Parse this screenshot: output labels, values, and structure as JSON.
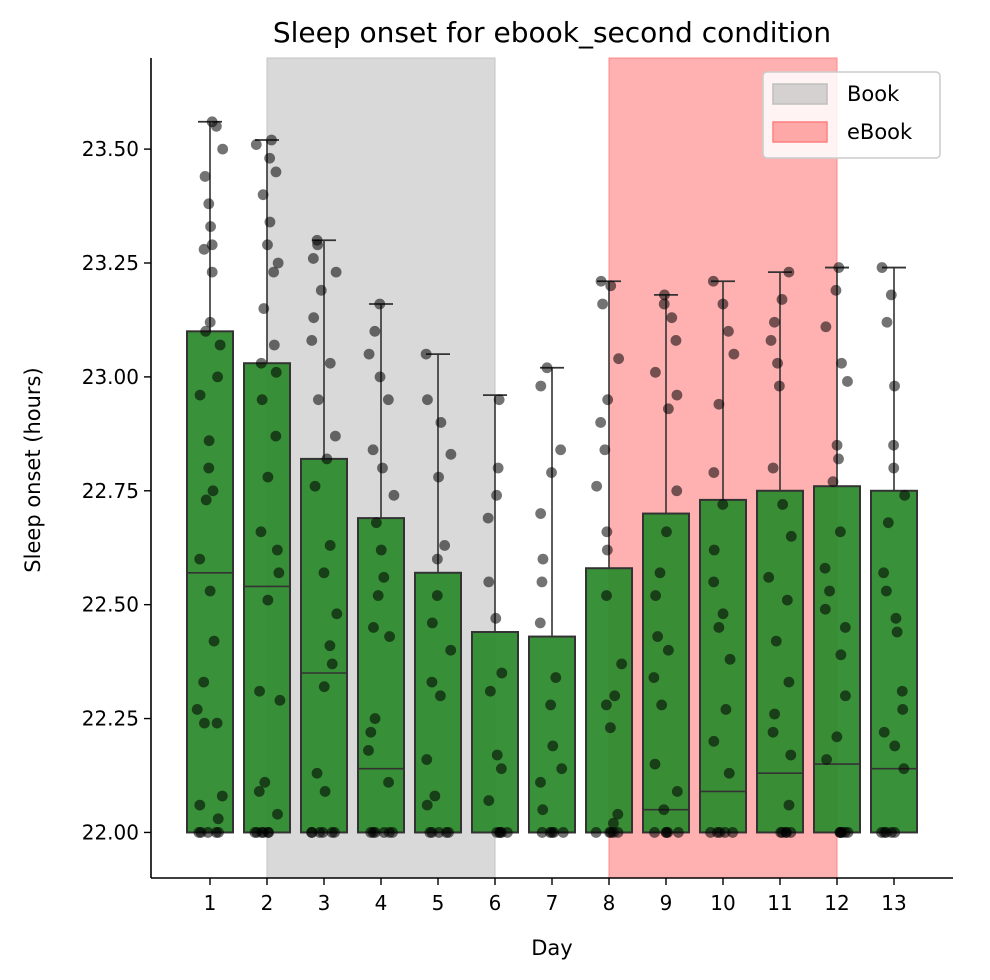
{
  "chart_data": {
    "type": "bar",
    "title": "Sleep onset for ebook_second condition",
    "xlabel": "Day",
    "ylabel": "Sleep onset (hours)",
    "categories": [
      "1",
      "2",
      "3",
      "4",
      "5",
      "6",
      "7",
      "8",
      "9",
      "10",
      "11",
      "12",
      "13"
    ],
    "ylim": [
      21.9,
      23.7
    ],
    "yticks": [
      22.0,
      22.25,
      22.5,
      22.75,
      23.0,
      23.25,
      23.5
    ],
    "ytick_labels": [
      "22.00",
      "22.25",
      "22.50",
      "22.75",
      "23.00",
      "23.25",
      "23.50"
    ],
    "bar_color": "#2e8b2e",
    "series": [
      {
        "values": [
          23.1,
          23.03,
          22.82,
          22.69,
          22.57,
          22.44,
          22.43,
          22.58,
          22.7,
          22.73,
          22.75,
          22.76,
          22.75
        ],
        "medians": [
          22.57,
          22.54,
          22.35,
          22.14,
          22.0,
          22.0,
          22.0,
          22.0,
          22.05,
          22.09,
          22.13,
          22.15,
          22.14
        ],
        "whisker_max": [
          23.56,
          23.52,
          23.3,
          23.16,
          23.05,
          22.96,
          23.02,
          23.21,
          23.18,
          23.21,
          23.23,
          23.24,
          23.24
        ]
      }
    ],
    "spans": [
      {
        "label": "Book",
        "x_start": "2",
        "x_end": "6",
        "color": "#bfbfbf"
      },
      {
        "label": "eBook",
        "x_start": "8",
        "x_end": "12",
        "color": "#ff8080"
      }
    ],
    "legend": {
      "placement": "top-right",
      "entries": [
        {
          "label": "Book",
          "color": "#bfbfbf"
        },
        {
          "label": "eBook",
          "color": "#ff8080"
        }
      ]
    },
    "points": [
      [
        22.0,
        22.0,
        22.0,
        22.0,
        22.0,
        22.03,
        22.06,
        22.08,
        22.24,
        22.24,
        22.27,
        22.33,
        22.42,
        22.53,
        22.6,
        22.73,
        22.75,
        22.8,
        22.86,
        22.96,
        23.0,
        23.07,
        23.1,
        23.12,
        23.23,
        23.28,
        23.29,
        23.33,
        23.38,
        23.44,
        23.5,
        23.55,
        23.56
      ],
      [
        22.0,
        22.0,
        22.0,
        22.0,
        22.0,
        22.0,
        22.04,
        22.09,
        22.11,
        22.29,
        22.31,
        22.51,
        22.57,
        22.62,
        22.66,
        22.78,
        22.87,
        22.95,
        23.01,
        23.03,
        23.07,
        23.15,
        23.23,
        23.25,
        23.29,
        23.34,
        23.4,
        23.45,
        23.48,
        23.51,
        23.52
      ],
      [
        22.0,
        22.0,
        22.0,
        22.0,
        22.0,
        22.0,
        22.09,
        22.13,
        22.32,
        22.37,
        22.41,
        22.48,
        22.57,
        22.63,
        22.76,
        22.82,
        22.87,
        22.95,
        23.03,
        23.08,
        23.13,
        23.19,
        23.23,
        23.26,
        23.29,
        23.3
      ],
      [
        22.0,
        22.0,
        22.0,
        22.0,
        22.0,
        22.0,
        22.11,
        22.18,
        22.22,
        22.25,
        22.43,
        22.45,
        22.52,
        22.56,
        22.62,
        22.68,
        22.74,
        22.8,
        22.84,
        22.95,
        23.0,
        23.05,
        23.1,
        23.16
      ],
      [
        22.0,
        22.0,
        22.0,
        22.0,
        22.0,
        22.06,
        22.08,
        22.16,
        22.3,
        22.33,
        22.4,
        22.46,
        22.52,
        22.6,
        22.63,
        22.78,
        22.83,
        22.9,
        22.95,
        23.05
      ],
      [
        22.0,
        22.0,
        22.0,
        22.0,
        22.0,
        22.07,
        22.14,
        22.17,
        22.31,
        22.35,
        22.47,
        22.55,
        22.69,
        22.74,
        22.8,
        22.95
      ],
      [
        22.0,
        22.0,
        22.0,
        22.0,
        22.0,
        22.05,
        22.11,
        22.14,
        22.19,
        22.28,
        22.34,
        22.46,
        22.55,
        22.6,
        22.7,
        22.79,
        22.84,
        22.98,
        23.02
      ],
      [
        22.0,
        22.0,
        22.0,
        22.0,
        22.0,
        22.02,
        22.04,
        22.23,
        22.28,
        22.3,
        22.37,
        22.52,
        22.62,
        22.66,
        22.76,
        22.84,
        22.9,
        22.95,
        23.04,
        23.16,
        23.2,
        23.21
      ],
      [
        22.0,
        22.0,
        22.0,
        22.0,
        22.0,
        22.05,
        22.09,
        22.15,
        22.28,
        22.34,
        22.4,
        22.43,
        22.52,
        22.57,
        22.66,
        22.75,
        22.93,
        22.96,
        23.01,
        23.08,
        23.13,
        23.16,
        23.18
      ],
      [
        22.0,
        22.0,
        22.0,
        22.0,
        22.0,
        22.13,
        22.2,
        22.27,
        22.38,
        22.45,
        22.48,
        22.55,
        22.62,
        22.72,
        22.79,
        22.94,
        23.05,
        23.1,
        23.16,
        23.21
      ],
      [
        22.0,
        22.0,
        22.0,
        22.0,
        22.0,
        22.06,
        22.17,
        22.22,
        22.26,
        22.33,
        22.42,
        22.51,
        22.56,
        22.65,
        22.72,
        22.8,
        22.98,
        23.03,
        23.08,
        23.12,
        23.17,
        23.23
      ],
      [
        22.0,
        22.0,
        22.0,
        22.0,
        22.0,
        22.0,
        22.16,
        22.21,
        22.3,
        22.39,
        22.45,
        22.49,
        22.53,
        22.58,
        22.66,
        22.77,
        22.82,
        22.85,
        22.99,
        23.03,
        23.11,
        23.19,
        23.24
      ],
      [
        22.0,
        22.0,
        22.0,
        22.0,
        22.0,
        22.14,
        22.19,
        22.22,
        22.27,
        22.31,
        22.44,
        22.47,
        22.53,
        22.57,
        22.68,
        22.74,
        22.8,
        22.85,
        22.98,
        23.12,
        23.18,
        23.24
      ]
    ]
  }
}
